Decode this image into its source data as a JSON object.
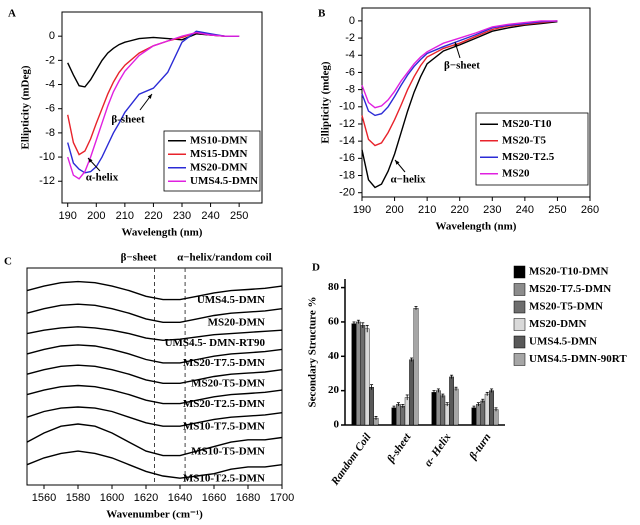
{
  "chart_data": [
    {
      "type": "line",
      "panel_label": "A",
      "xlabel": "Wavelength (nm)",
      "ylabel": "Ellipticity (mDeg)",
      "x": [
        190,
        192,
        194,
        196,
        198,
        200,
        202,
        204,
        206,
        208,
        210,
        215,
        220,
        225,
        230,
        235,
        240,
        245,
        250
      ],
      "xlim": [
        188,
        258
      ],
      "xticks": [
        190,
        200,
        210,
        220,
        230,
        240,
        250
      ],
      "ylim": [
        -13.8,
        2
      ],
      "yticks": [
        -12,
        -10,
        -8,
        -6,
        -4,
        -2,
        0
      ],
      "legend": "lower right",
      "annotations": [
        "β-sheet",
        "α-helix"
      ],
      "series": [
        {
          "name": "MS10-DMN",
          "color": "#000000",
          "values": [
            -2.2,
            -3.2,
            -4.1,
            -4.2,
            -3.6,
            -2.8,
            -2.0,
            -1.4,
            -1.0,
            -0.7,
            -0.5,
            -0.2,
            -0.1,
            -0.2,
            -0.3,
            0.2,
            0.1,
            0,
            0
          ]
        },
        {
          "name": "MS15-DMN",
          "color": "#e8232b",
          "values": [
            -6.5,
            -8.8,
            -9.8,
            -9.5,
            -8.5,
            -7.2,
            -6.0,
            -4.8,
            -3.8,
            -3.0,
            -2.4,
            -1.4,
            -0.8,
            -0.4,
            -0.1,
            0.3,
            0.1,
            0,
            0
          ]
        },
        {
          "name": "MS20-DMN",
          "color": "#2b2bd6",
          "values": [
            -8.8,
            -10.5,
            -11.0,
            -11.3,
            -11.2,
            -10.8,
            -10.0,
            -9.0,
            -8.0,
            -7.2,
            -6.3,
            -4.8,
            -4.3,
            -3.0,
            -0.5,
            0.4,
            0.2,
            0,
            0
          ]
        },
        {
          "name": "UMS4.5-DMN",
          "color": "#e020e0",
          "values": [
            -10.0,
            -11.5,
            -11.8,
            -11.2,
            -10.0,
            -8.6,
            -7.2,
            -5.8,
            -4.6,
            -3.7,
            -2.9,
            -1.6,
            -0.8,
            -0.4,
            0,
            0.3,
            0.1,
            0,
            0
          ]
        }
      ]
    },
    {
      "type": "line",
      "panel_label": "B",
      "xlabel": "Wavelength (nm)",
      "ylabel": "Ellipticity (mdeg)",
      "x": [
        190,
        192,
        194,
        196,
        198,
        200,
        202,
        204,
        206,
        208,
        210,
        215,
        220,
        225,
        230,
        235,
        240,
        245,
        250
      ],
      "xlim": [
        190,
        260
      ],
      "xticks": [
        190,
        200,
        210,
        220,
        230,
        240,
        250,
        260
      ],
      "ylim": [
        -20.5,
        1.5
      ],
      "yticks": [
        -20,
        -18,
        -16,
        -14,
        -12,
        -10,
        -8,
        -6,
        -4,
        -2,
        0
      ],
      "legend": "lower right",
      "annotations": [
        "β−sheet",
        "α−helix"
      ],
      "series": [
        {
          "name": "MS20-T10",
          "color": "#000000",
          "values": [
            -15,
            -18.5,
            -19.4,
            -19.0,
            -17.5,
            -15.5,
            -13,
            -10.5,
            -8.3,
            -6.5,
            -5.0,
            -3.5,
            -2.8,
            -2.0,
            -1.2,
            -0.8,
            -0.5,
            -0.3,
            -0.1
          ]
        },
        {
          "name": "MS20-T5",
          "color": "#e8232b",
          "values": [
            -11,
            -13.8,
            -14.5,
            -14.2,
            -13,
            -11.5,
            -9.8,
            -8.0,
            -6.5,
            -5.2,
            -4.2,
            -3.2,
            -2.6,
            -1.8,
            -1.0,
            -0.6,
            -0.4,
            -0.2,
            0
          ]
        },
        {
          "name": "MS20-T2.5",
          "color": "#2b2bd6",
          "values": [
            -8.5,
            -10.5,
            -11.0,
            -10.8,
            -10,
            -8.8,
            -7.5,
            -6.3,
            -5.3,
            -4.5,
            -3.8,
            -3.0,
            -2.3,
            -1.6,
            -0.8,
            -0.5,
            -0.3,
            -0.1,
            0
          ]
        },
        {
          "name": "MS20",
          "color": "#e020e0",
          "values": [
            -7.5,
            -9.5,
            -10.1,
            -9.9,
            -9.2,
            -8.2,
            -7.0,
            -6.0,
            -5.0,
            -4.2,
            -3.6,
            -2.6,
            -2.0,
            -1.4,
            -0.7,
            -0.4,
            -0.2,
            0,
            0
          ]
        }
      ]
    },
    {
      "type": "line",
      "panel_label": "C",
      "xlabel": "Wavenumber (cm⁻¹)",
      "x": [
        1550,
        1560,
        1570,
        1580,
        1590,
        1600,
        1610,
        1620,
        1630,
        1640,
        1650,
        1660,
        1670,
        1680,
        1690,
        1700
      ],
      "xlim": [
        1550,
        1700
      ],
      "xticks": [
        1560,
        1580,
        1600,
        1620,
        1640,
        1660,
        1680,
        1700
      ],
      "ylim": [
        0,
        9.6
      ],
      "legend": "inline",
      "reference_lines": [
        1625,
        1643
      ],
      "annotations": [
        "β−sheet",
        "α−helix/random coil"
      ],
      "series": [
        {
          "name": "UMS4.5-DMN",
          "color": "#000000",
          "values": [
            8.6,
            8.8,
            8.95,
            9.0,
            8.95,
            8.8,
            8.6,
            8.35,
            8.2,
            8.2,
            8.35,
            8.5,
            8.6,
            8.65,
            8.7,
            8.8
          ]
        },
        {
          "name": "MS20-DMN",
          "color": "#000000",
          "values": [
            7.6,
            7.8,
            7.95,
            8.0,
            7.95,
            7.8,
            7.6,
            7.35,
            7.2,
            7.2,
            7.35,
            7.5,
            7.6,
            7.65,
            7.7,
            7.8
          ]
        },
        {
          "name": "UMS4.5- DMN-RT90",
          "color": "#000000",
          "values": [
            6.7,
            6.85,
            6.95,
            7.0,
            6.95,
            6.85,
            6.7,
            6.5,
            6.4,
            6.45,
            6.55,
            6.65,
            6.7,
            6.75,
            6.8,
            6.85
          ]
        },
        {
          "name": "MS20-T7.5-DMN",
          "color": "#000000",
          "values": [
            5.8,
            6.0,
            6.15,
            6.2,
            6.15,
            6.0,
            5.8,
            5.55,
            5.4,
            5.4,
            5.55,
            5.7,
            5.8,
            5.85,
            5.9,
            6.0
          ]
        },
        {
          "name": "MS20-T5-DMN",
          "color": "#000000",
          "values": [
            4.9,
            5.1,
            5.25,
            5.3,
            5.25,
            5.1,
            4.9,
            4.65,
            4.5,
            4.5,
            4.65,
            4.8,
            4.9,
            4.95,
            5.0,
            5.1
          ]
        },
        {
          "name": "MS20-T2.5-DMN",
          "color": "#000000",
          "values": [
            4.0,
            4.2,
            4.35,
            4.4,
            4.35,
            4.2,
            4.0,
            3.75,
            3.6,
            3.6,
            3.75,
            3.9,
            4.0,
            4.05,
            4.1,
            4.2
          ]
        },
        {
          "name": "MS10-T7.5-DMN",
          "color": "#000000",
          "values": [
            3.0,
            3.25,
            3.4,
            3.45,
            3.4,
            3.25,
            3.0,
            2.75,
            2.6,
            2.6,
            2.75,
            2.9,
            3.0,
            3.05,
            3.1,
            3.2
          ]
        },
        {
          "name": "MS10-T5-DMN",
          "color": "#000000",
          "values": [
            1.9,
            2.3,
            2.6,
            2.7,
            2.6,
            2.3,
            1.9,
            1.5,
            1.3,
            1.3,
            1.5,
            1.7,
            1.9,
            2.0,
            2.0,
            2.1
          ]
        },
        {
          "name": "MS10-T2.5-DMN",
          "color": "#000000",
          "values": [
            0.9,
            1.2,
            1.4,
            1.5,
            1.4,
            1.2,
            0.9,
            0.6,
            0.4,
            0.3,
            0.4,
            0.5,
            0.7,
            0.8,
            0.8,
            0.9
          ]
        }
      ]
    },
    {
      "type": "bar",
      "panel_label": "D",
      "ylabel": "Secondary Structure %",
      "categories": [
        "Random Coil",
        "β-sheet",
        "α- Helix",
        "β-turn"
      ],
      "ylim": [
        0,
        85
      ],
      "yticks": [
        0,
        20,
        40,
        60,
        80
      ],
      "legend": "right",
      "series": [
        {
          "name": "MS20-T10-DMN",
          "color": "#000000",
          "values": [
            59,
            10,
            19,
            10
          ],
          "errors": [
            1,
            1,
            1,
            1
          ]
        },
        {
          "name": "MS20-T7.5-DMN",
          "color": "#8c8c8c",
          "values": [
            60,
            12,
            20,
            12
          ],
          "errors": [
            1,
            1,
            1,
            1
          ]
        },
        {
          "name": "MS20-T5-DMN",
          "color": "#6e6e6e",
          "values": [
            58,
            11,
            17,
            14
          ],
          "errors": [
            1.5,
            1,
            1,
            1
          ]
        },
        {
          "name": "MS20-DMN",
          "color": "#d9d9d9",
          "values": [
            56,
            16,
            12,
            18
          ],
          "errors": [
            2,
            1.5,
            1,
            1
          ]
        },
        {
          "name": "UMS4.5-DMN",
          "color": "#595959",
          "values": [
            22,
            38,
            28,
            20
          ],
          "errors": [
            1.5,
            1,
            1,
            1
          ]
        },
        {
          "name": "UMS4.5-DMN-90RT",
          "color": "#a6a6a6",
          "values": [
            4,
            68,
            21,
            9
          ],
          "errors": [
            1,
            1,
            1,
            1
          ]
        }
      ]
    }
  ]
}
